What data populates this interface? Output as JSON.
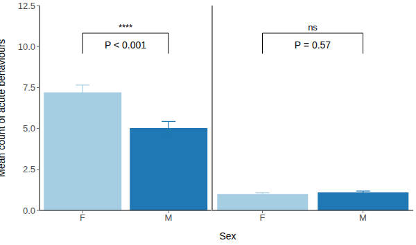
{
  "chart_data": [
    {
      "type": "bar",
      "y_label": "Mean count of acute behaviours",
      "x_label": "Sex",
      "categories": [
        "F",
        "M"
      ],
      "values": [
        7.2,
        5.03
      ],
      "errors": [
        0.45,
        0.4
      ],
      "colors": [
        "#a6cee3",
        "#1f78b4"
      ],
      "ylim": [
        0,
        12.5
      ],
      "yticks": [
        {
          "value": 0,
          "label": "0.0"
        },
        2.5,
        {
          "value": 5,
          "label": "5.0"
        },
        7.5,
        {
          "value": 10,
          "label": "10.0"
        },
        12.5
      ],
      "annotation": {
        "significance": "****",
        "p_value": "P < 0.001"
      }
    },
    {
      "type": "bar",
      "categories": [
        "F",
        "M"
      ],
      "values": [
        1.0,
        1.1
      ],
      "errors": [
        0.07,
        0.08
      ],
      "colors": [
        "#a6cee3",
        "#1f78b4"
      ],
      "ylim": [
        0,
        12.5
      ],
      "yticks": [
        {
          "value": 0,
          "label": "0.0"
        },
        2.5,
        {
          "value": 5,
          "label": "5.0"
        },
        7.5,
        {
          "value": 10,
          "label": "10.0"
        },
        12.5
      ],
      "tick_labels": "x",
      "annotation": {
        "significance": "ns",
        "p_value": "P = 0.57"
      }
    }
  ]
}
